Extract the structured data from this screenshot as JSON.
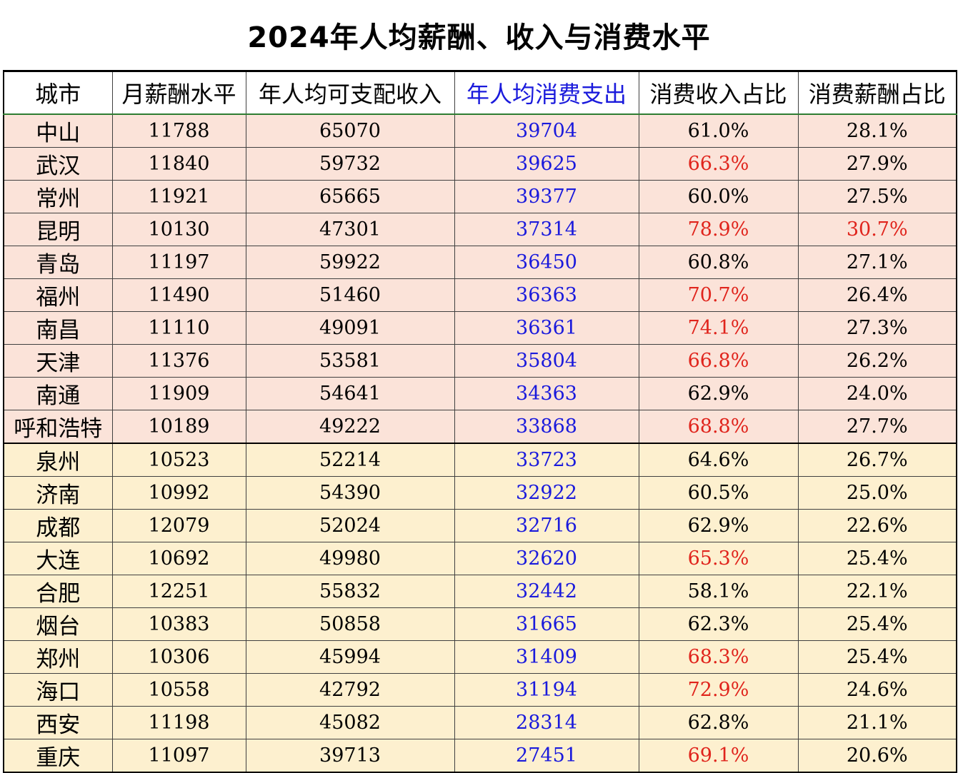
{
  "title": "2024年人均薪酬、收入与消费水平",
  "colors": {
    "highlight_blue": "#1a1adc",
    "alert_red": "#e0241c",
    "group1_bg": "#fbe3d9",
    "group2_bg": "#fdf0cf"
  },
  "headers": [
    "城市",
    "月薪酬水平",
    "年人均可支配收入",
    "年人均消费支出",
    "消费收入占比",
    "消费薪酬占比"
  ],
  "rows": [
    {
      "city": "中山",
      "salary": "11788",
      "income": "65070",
      "spend": "39704",
      "ratio_income": "61.0%",
      "ratio_salary": "28.1%",
      "red_income": false,
      "red_salary": false
    },
    {
      "city": "武汉",
      "salary": "11840",
      "income": "59732",
      "spend": "39625",
      "ratio_income": "66.3%",
      "ratio_salary": "27.9%",
      "red_income": true,
      "red_salary": false
    },
    {
      "city": "常州",
      "salary": "11921",
      "income": "65665",
      "spend": "39377",
      "ratio_income": "60.0%",
      "ratio_salary": "27.5%",
      "red_income": false,
      "red_salary": false
    },
    {
      "city": "昆明",
      "salary": "10130",
      "income": "47301",
      "spend": "37314",
      "ratio_income": "78.9%",
      "ratio_salary": "30.7%",
      "red_income": true,
      "red_salary": true
    },
    {
      "city": "青岛",
      "salary": "11197",
      "income": "59922",
      "spend": "36450",
      "ratio_income": "60.8%",
      "ratio_salary": "27.1%",
      "red_income": false,
      "red_salary": false
    },
    {
      "city": "福州",
      "salary": "11490",
      "income": "51460",
      "spend": "36363",
      "ratio_income": "70.7%",
      "ratio_salary": "26.4%",
      "red_income": true,
      "red_salary": false
    },
    {
      "city": "南昌",
      "salary": "11110",
      "income": "49091",
      "spend": "36361",
      "ratio_income": "74.1%",
      "ratio_salary": "27.3%",
      "red_income": true,
      "red_salary": false
    },
    {
      "city": "天津",
      "salary": "11376",
      "income": "53581",
      "spend": "35804",
      "ratio_income": "66.8%",
      "ratio_salary": "26.2%",
      "red_income": true,
      "red_salary": false
    },
    {
      "city": "南通",
      "salary": "11909",
      "income": "54641",
      "spend": "34363",
      "ratio_income": "62.9%",
      "ratio_salary": "24.0%",
      "red_income": false,
      "red_salary": false
    },
    {
      "city": "呼和浩特",
      "salary": "10189",
      "income": "49222",
      "spend": "33868",
      "ratio_income": "68.8%",
      "ratio_salary": "27.7%",
      "red_income": true,
      "red_salary": false
    },
    {
      "city": "泉州",
      "salary": "10523",
      "income": "52214",
      "spend": "33723",
      "ratio_income": "64.6%",
      "ratio_salary": "26.7%",
      "red_income": false,
      "red_salary": false
    },
    {
      "city": "济南",
      "salary": "10992",
      "income": "54390",
      "spend": "32922",
      "ratio_income": "60.5%",
      "ratio_salary": "25.0%",
      "red_income": false,
      "red_salary": false
    },
    {
      "city": "成都",
      "salary": "12079",
      "income": "52024",
      "spend": "32716",
      "ratio_income": "62.9%",
      "ratio_salary": "22.6%",
      "red_income": false,
      "red_salary": false
    },
    {
      "city": "大连",
      "salary": "10692",
      "income": "49980",
      "spend": "32620",
      "ratio_income": "65.3%",
      "ratio_salary": "25.4%",
      "red_income": true,
      "red_salary": false
    },
    {
      "city": "合肥",
      "salary": "12251",
      "income": "55832",
      "spend": "32442",
      "ratio_income": "58.1%",
      "ratio_salary": "22.1%",
      "red_income": false,
      "red_salary": false
    },
    {
      "city": "烟台",
      "salary": "10383",
      "income": "50858",
      "spend": "31665",
      "ratio_income": "62.3%",
      "ratio_salary": "25.4%",
      "red_income": false,
      "red_salary": false
    },
    {
      "city": "郑州",
      "salary": "10306",
      "income": "45994",
      "spend": "31409",
      "ratio_income": "68.3%",
      "ratio_salary": "25.4%",
      "red_income": true,
      "red_salary": false
    },
    {
      "city": "海口",
      "salary": "10558",
      "income": "42792",
      "spend": "31194",
      "ratio_income": "72.9%",
      "ratio_salary": "24.6%",
      "red_income": true,
      "red_salary": false
    },
    {
      "city": "西安",
      "salary": "11198",
      "income": "45082",
      "spend": "28314",
      "ratio_income": "62.8%",
      "ratio_salary": "21.1%",
      "red_income": false,
      "red_salary": false
    },
    {
      "city": "重庆",
      "salary": "11097",
      "income": "39713",
      "spend": "27451",
      "ratio_income": "69.1%",
      "ratio_salary": "20.6%",
      "red_income": true,
      "red_salary": false
    }
  ]
}
